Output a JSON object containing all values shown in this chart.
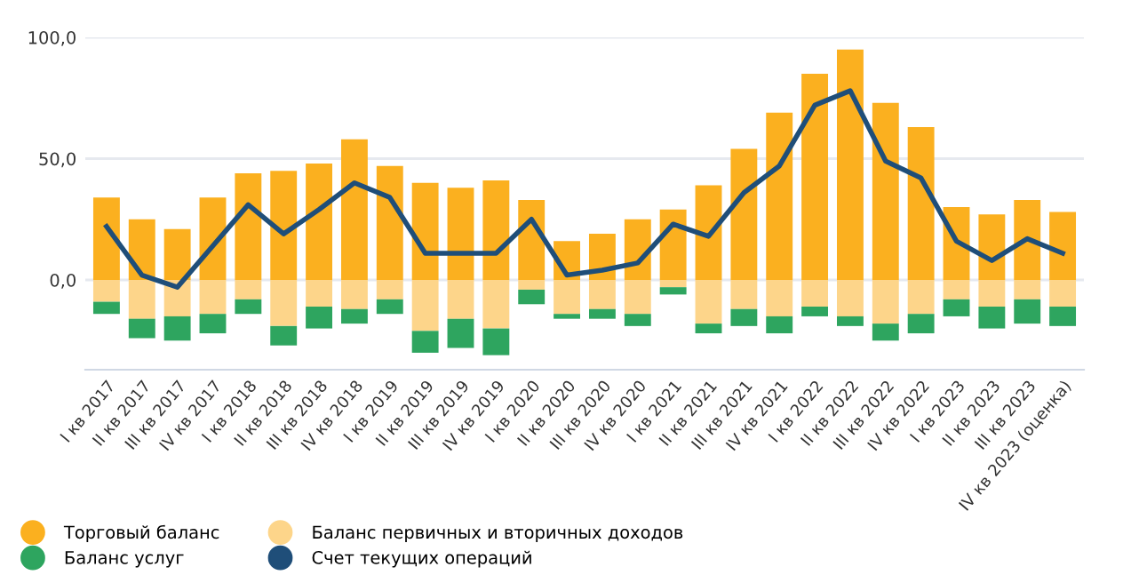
{
  "chart_data": {
    "type": "bar",
    "stacked": true,
    "categories": [
      "I кв 2017",
      "II кв 2017",
      "III кв 2017",
      "IV кв 2017",
      "I кв 2018",
      "II кв 2018",
      "III кв 2018",
      "IV кв 2018",
      "I кв 2019",
      "II кв 2019",
      "III кв 2019",
      "IV кв 2019",
      "I кв 2020",
      "II кв 2020",
      "III кв 2020",
      "IV кв 2020",
      "I кв 2021",
      "II кв 2021",
      "III кв 2021",
      "IV кв 2021",
      "I кв 2022",
      "II кв 2022",
      "III кв 2022",
      "IV кв 2022",
      "I кв 2023",
      "II кв 2023",
      "III кв 2023",
      "IV кв 2023 (оценка)"
    ],
    "series": [
      {
        "name": "Торговый баланс",
        "color": "#fbb01f",
        "values": [
          34,
          25,
          21,
          34,
          44,
          45,
          48,
          58,
          47,
          40,
          38,
          41,
          33,
          16,
          19,
          25,
          29,
          39,
          54,
          69,
          85,
          95,
          73,
          63,
          30,
          27,
          33,
          28
        ]
      },
      {
        "name": "Баланс первичных и вторичных доходов",
        "color": "#fdd58a",
        "values": [
          -9,
          -16,
          -15,
          -14,
          -8,
          -19,
          -11,
          -12,
          -8,
          -21,
          -16,
          -20,
          -4,
          -14,
          -12,
          -14,
          -3,
          -18,
          -12,
          -15,
          -11,
          -15,
          -18,
          -14,
          -8,
          -11,
          -8,
          -11
        ]
      },
      {
        "name": "Баланс услуг",
        "color": "#2ea55f",
        "values": [
          -5,
          -8,
          -10,
          -8,
          -6,
          -8,
          -9,
          -6,
          -6,
          -9,
          -12,
          -11,
          -6,
          -2,
          -4,
          -5,
          -3,
          -4,
          -7,
          -7,
          -4,
          -4,
          -7,
          -8,
          -7,
          -9,
          -10,
          -8
        ]
      },
      {
        "name": "Счет текущих операций",
        "color": "#1f4e79",
        "type": "line",
        "values": [
          22,
          2,
          -3,
          14,
          31,
          19,
          29,
          40,
          34,
          11,
          11,
          11,
          25,
          2,
          4,
          7,
          23,
          18,
          36,
          47,
          72,
          78,
          49,
          42,
          16,
          8,
          17,
          11
        ]
      }
    ],
    "ylim": [
      -37,
      100
    ],
    "yticks": [
      {
        "value": 0,
        "label": "0,0"
      },
      {
        "value": 50,
        "label": "50,0"
      },
      {
        "value": 100,
        "label": "100,0"
      }
    ],
    "grid": "y",
    "legend": "bottom left",
    "marker": "none",
    "line_style": "solid"
  }
}
